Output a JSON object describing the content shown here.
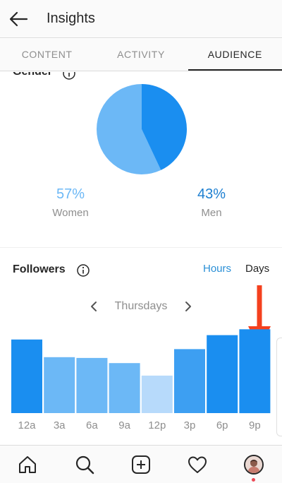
{
  "header": {
    "title": "Insights"
  },
  "tabs": [
    {
      "label": "CONTENT",
      "active": false
    },
    {
      "label": "ACTIVITY",
      "active": false
    },
    {
      "label": "AUDIENCE",
      "active": true
    }
  ],
  "gender": {
    "heading": "Gender",
    "women": {
      "percent": "57%",
      "label": "Women",
      "value": 57,
      "color": "#6cb8f6"
    },
    "men": {
      "percent": "43%",
      "label": "Men",
      "value": 43,
      "color": "#1a8ef0"
    }
  },
  "followers": {
    "heading": "Followers",
    "toggle_hours": "Hours",
    "toggle_days": "Days",
    "active_toggle": "Hours",
    "day": "Thursdays"
  },
  "chart_data": {
    "type": "bar",
    "categories": [
      "12a",
      "3a",
      "6a",
      "9a",
      "12p",
      "3p",
      "6p",
      "9p"
    ],
    "values": [
      100,
      76,
      75,
      68,
      51,
      87,
      106,
      114
    ],
    "ylim": [
      0,
      120
    ],
    "colors": [
      "#1a8ef0",
      "#6cb8f6",
      "#6cb8f6",
      "#6cb8f6",
      "#b7dafb",
      "#3d9ff2",
      "#1a8ef0",
      "#1a8ef0"
    ],
    "annotation": {
      "type": "red-arrow",
      "target": "9p",
      "color": "#f4401e"
    }
  },
  "colors": {
    "accent": "#2a8fd6",
    "men_text": "#1d7fd1",
    "women_text": "#6cb8f6",
    "tick": "#8e8e8e"
  },
  "bottom_nav": {
    "icons": [
      "home-icon",
      "search-icon",
      "add-post-icon",
      "heart-icon",
      "profile-avatar"
    ]
  }
}
